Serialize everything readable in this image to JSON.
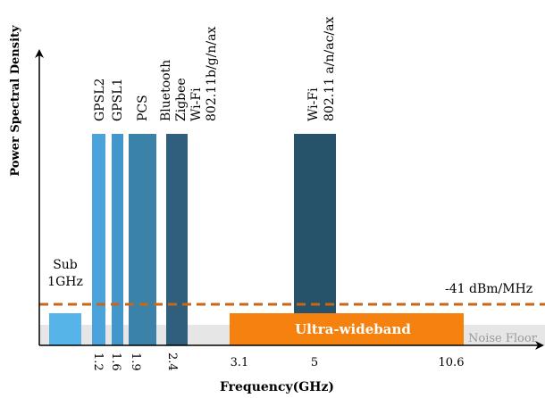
{
  "chart_data": {
    "type": "bar",
    "xlabel": "Frequency(GHz)",
    "ylabel": "Power Spectral Density",
    "ticks": [
      {
        "label": "1.2",
        "rotated": true
      },
      {
        "label": "1.6",
        "rotated": true
      },
      {
        "label": "1.9",
        "rotated": true
      },
      {
        "label": "2.4",
        "rotated": true
      },
      {
        "label": "3.1",
        "rotated": false
      },
      {
        "label": "5",
        "rotated": false
      },
      {
        "label": "10.6",
        "rotated": false
      }
    ],
    "bands": [
      {
        "name": "Sub 1GHz",
        "lines": [
          "Sub",
          "1GHz"
        ],
        "level": 0.12,
        "color": "#56b4e9"
      },
      {
        "name": "GPSL2",
        "lines": [
          "GPSL2"
        ],
        "level": 1.0,
        "color": "#4aa3da"
      },
      {
        "name": "GPSL1",
        "lines": [
          "GPSL1"
        ],
        "level": 1.0,
        "color": "#4197cb"
      },
      {
        "name": "PCS",
        "lines": [
          "PCS"
        ],
        "level": 1.0,
        "color": "#3a82a8"
      },
      {
        "name": "Bluetooth Zigbee Wi-Fi 802.11b/g/n/ax",
        "lines": [
          "Bluetooth",
          "Zigbee",
          "Wi-Fi",
          "802.11b/g/n/ax"
        ],
        "level": 1.0,
        "color": "#2f5f7c"
      },
      {
        "name": "Wi-Fi 802.11 a/n/ac/ax",
        "lines": [
          "Wi-Fi",
          "802.11 a/n/ac/ax"
        ],
        "level": 1.0,
        "color": "#26536a"
      }
    ],
    "uwb": {
      "label": "Ultra-wideband",
      "from": "3.1",
      "to": "10.6",
      "color": "#f5820f"
    },
    "limit": {
      "label": "-41 dBm/MHz",
      "color": "#c8661a"
    },
    "noise_floor": {
      "label": "Noise Floor",
      "color": "#e6e6e6"
    }
  }
}
